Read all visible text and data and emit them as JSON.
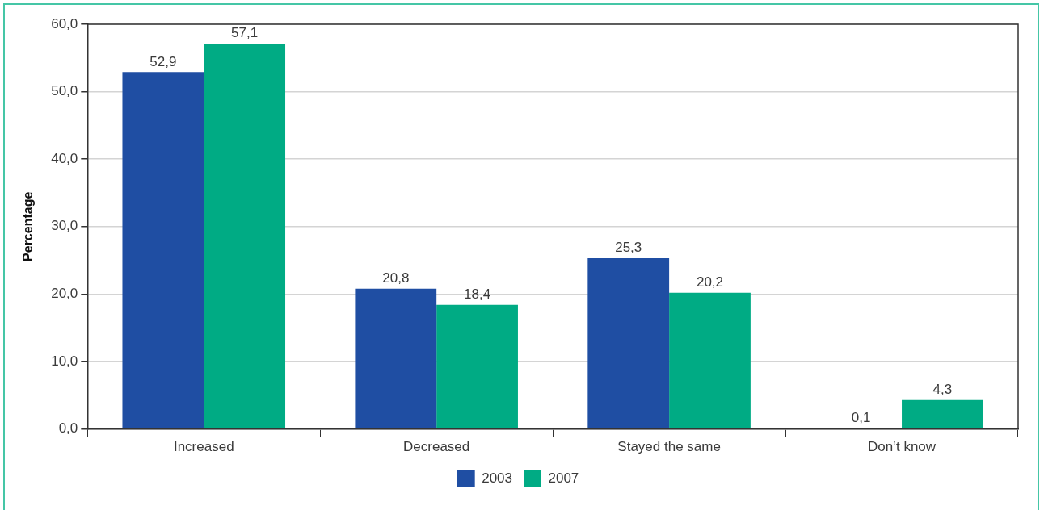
{
  "chart_data": {
    "type": "bar",
    "categories": [
      "Increased",
      "Decreased",
      "Stayed the same",
      "Don’t know"
    ],
    "series": [
      {
        "name": "2003",
        "color": "#1f4ea3",
        "values": [
          52.9,
          20.8,
          25.3,
          0.1
        ],
        "value_labels": [
          "52,9",
          "20,8",
          "25,3",
          "0,1"
        ]
      },
      {
        "name": "2007",
        "color": "#00ab84",
        "values": [
          57.1,
          18.4,
          20.2,
          4.3
        ],
        "value_labels": [
          "57,1",
          "18,4",
          "20,2",
          "4,3"
        ]
      }
    ],
    "ylabel": "Percentage",
    "ylim": [
      0,
      60
    ],
    "yticks": [
      {
        "value": 0,
        "label": "0,0"
      },
      {
        "value": 10,
        "label": "10,0"
      },
      {
        "value": 20,
        "label": "20,0"
      },
      {
        "value": 30,
        "label": "30,0"
      },
      {
        "value": 40,
        "label": "40,0"
      },
      {
        "value": 50,
        "label": "50,0"
      },
      {
        "value": 60,
        "label": "60,0"
      }
    ],
    "grid": "y",
    "legend": "bottom"
  }
}
